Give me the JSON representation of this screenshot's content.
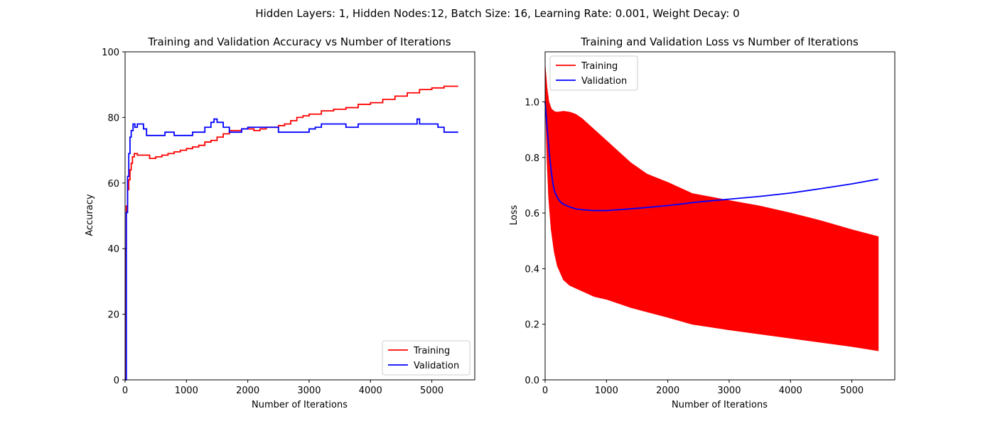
{
  "suptitle": "Hidden Layers: 1, Hidden Nodes:12, Batch Size: 16, Learning Rate: 0.001, Weight Decay: 0",
  "chart_data": [
    {
      "type": "line",
      "title": "Training and Validation Accuracy vs Number of Iterations",
      "xlabel": "Number of Iterations",
      "ylabel": "Accuracy",
      "xlim": [
        0,
        5700
      ],
      "ylim": [
        0,
        100
      ],
      "xticks": [
        0,
        1000,
        2000,
        3000,
        4000,
        5000
      ],
      "yticks": [
        0,
        20,
        40,
        60,
        80,
        100
      ],
      "legend_loc": "lower-right",
      "grid": false,
      "series": [
        {
          "name": "Training",
          "color": "#ff0000",
          "x": [
            0,
            10,
            20,
            40,
            60,
            80,
            100,
            120,
            150,
            200,
            300,
            400,
            500,
            600,
            700,
            800,
            900,
            1000,
            1100,
            1200,
            1300,
            1400,
            1500,
            1600,
            1700,
            1800,
            1900,
            2000,
            2100,
            2200,
            2300,
            2400,
            2500,
            2600,
            2700,
            2800,
            2900,
            3000,
            3200,
            3400,
            3600,
            3800,
            4000,
            4200,
            4400,
            4600,
            4800,
            5000,
            5200,
            5430
          ],
          "y": [
            0,
            40,
            53,
            58,
            61,
            64,
            66,
            68,
            69,
            68.5,
            68.5,
            67.5,
            68,
            68.5,
            69,
            69.5,
            70,
            70.5,
            71,
            71.5,
            72.5,
            73,
            74,
            75,
            76,
            76,
            76.5,
            76.5,
            76,
            76.5,
            77,
            77,
            77.5,
            78,
            79,
            80,
            80.5,
            81,
            82,
            82.5,
            83,
            84,
            84.5,
            85.5,
            86.5,
            87.5,
            88.5,
            89,
            89.5,
            89.5
          ]
        },
        {
          "name": "Validation",
          "color": "#0000ff",
          "x": [
            0,
            20,
            40,
            60,
            80,
            100,
            130,
            160,
            200,
            250,
            300,
            350,
            400,
            500,
            600,
            650,
            700,
            800,
            900,
            1000,
            1100,
            1200,
            1300,
            1400,
            1450,
            1500,
            1600,
            1700,
            1800,
            1900,
            2000,
            2200,
            2400,
            2500,
            2600,
            2800,
            3000,
            3100,
            3200,
            3400,
            3600,
            3800,
            4000,
            4200,
            4400,
            4600,
            4700,
            4760,
            4800,
            5000,
            5100,
            5200,
            5430
          ],
          "y": [
            0,
            51,
            62,
            69,
            74,
            76,
            78,
            77,
            78,
            78,
            76.5,
            74.5,
            74.5,
            74.5,
            74.5,
            75.5,
            75.5,
            74.5,
            74.5,
            74.5,
            75.5,
            75.5,
            77,
            78.5,
            79.5,
            78.5,
            77,
            75.5,
            75.5,
            76.5,
            77,
            77,
            77,
            75.5,
            75.5,
            75.5,
            76.5,
            77,
            78,
            78,
            77,
            78,
            78,
            78,
            78,
            78,
            78,
            79.5,
            78,
            78,
            77,
            75.5,
            75.5
          ]
        }
      ]
    },
    {
      "type": "line",
      "title": "Training and Validation Loss vs Number of Iterations",
      "xlabel": "Number of Iterations",
      "ylabel": "Loss",
      "xlim": [
        0,
        5700
      ],
      "ylim": [
        0,
        1.18
      ],
      "xticks": [
        0,
        1000,
        2000,
        3000,
        4000,
        5000
      ],
      "yticks": [
        0.0,
        0.2,
        0.4,
        0.6,
        0.8,
        1.0
      ],
      "legend_loc": "upper-left",
      "grid": false,
      "series": [
        {
          "name": "Training",
          "color": "#ff0000",
          "style": "oscillating band",
          "x": [
            0,
            30,
            60,
            100,
            150,
            200,
            300,
            400,
            500,
            600,
            800,
            1000,
            1200,
            1400,
            1660,
            2000,
            2400,
            3000,
            3500,
            4000,
            4500,
            5000,
            5430
          ],
          "upper": [
            1.13,
            1.05,
            1.0,
            0.975,
            0.965,
            0.963,
            0.966,
            0.963,
            0.955,
            0.94,
            0.9,
            0.86,
            0.82,
            0.78,
            0.74,
            0.71,
            0.67,
            0.645,
            0.625,
            0.6,
            0.572,
            0.54,
            0.515
          ],
          "lower": [
            1.05,
            0.8,
            0.65,
            0.54,
            0.46,
            0.41,
            0.36,
            0.34,
            0.33,
            0.32,
            0.3,
            0.29,
            0.275,
            0.26,
            0.245,
            0.225,
            0.2,
            0.18,
            0.165,
            0.15,
            0.135,
            0.12,
            0.105
          ]
        },
        {
          "name": "Validation",
          "color": "#0000ff",
          "x": [
            0,
            25,
            50,
            75,
            100,
            125,
            150,
            200,
            250,
            300,
            400,
            500,
            600,
            800,
            1000,
            1200,
            1500,
            2000,
            2500,
            3000,
            3500,
            4000,
            4500,
            5000,
            5430
          ],
          "y": [
            1.0,
            0.93,
            0.86,
            0.8,
            0.75,
            0.71,
            0.68,
            0.655,
            0.64,
            0.632,
            0.622,
            0.615,
            0.612,
            0.609,
            0.609,
            0.612,
            0.617,
            0.627,
            0.64,
            0.65,
            0.66,
            0.672,
            0.688,
            0.705,
            0.722
          ]
        }
      ]
    }
  ]
}
